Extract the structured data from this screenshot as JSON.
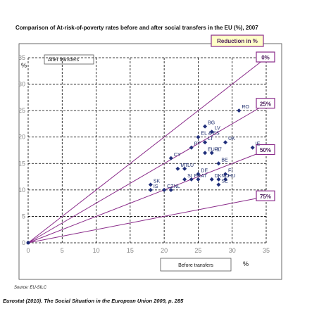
{
  "chart_data": {
    "type": "scatter",
    "title": "Comparison of At-risk-of-poverty rates before and after social transfers in the EU (%), 2007",
    "x_label": "Before transfers",
    "y_label": "After transfers",
    "x_unit": "%",
    "y_unit": "%",
    "reference_title": "Reduction in %",
    "reference_lines": [
      {
        "label": "0%",
        "reduction": 0
      },
      {
        "label": "25%",
        "reduction": 25
      },
      {
        "label": "50%",
        "reduction": 50
      },
      {
        "label": "75%",
        "reduction": 75
      }
    ],
    "xlim": [
      0,
      35
    ],
    "ylim": [
      0,
      35
    ],
    "xticks": [
      0,
      5,
      10,
      15,
      20,
      25,
      30,
      35
    ],
    "yticks": [
      0,
      5,
      10,
      15,
      20,
      25,
      30,
      35
    ],
    "grid": true,
    "series": [
      {
        "color": "#1f2e7a",
        "x": [
          26,
          31,
          27,
          25,
          26,
          29,
          33,
          24,
          27,
          26,
          28,
          21,
          22,
          23,
          25,
          23,
          24,
          25,
          28,
          29,
          29,
          27,
          28,
          18,
          20,
          18,
          21
        ],
        "values": [
          22,
          25,
          21,
          20,
          19,
          19,
          18,
          18,
          17,
          17,
          15,
          16,
          14,
          14,
          13,
          12,
          12,
          12,
          12,
          13,
          12,
          12,
          11,
          11,
          10,
          10,
          10
        ],
        "labels": [
          "BG",
          "RO",
          "LV",
          "EL & ES",
          "LT",
          "UK",
          "IE",
          "PT",
          "PL",
          "EU-27",
          "BE",
          "CY",
          "MT",
          "LU",
          "DE",
          "SI",
          "FR",
          "AT",
          "NO",
          "FI",
          "HU",
          "DK",
          "SE",
          "SK",
          "CZ",
          "IS",
          "NL"
        ]
      }
    ],
    "source": "Source: EU-SILC",
    "footer": "Eurostat (2010). The Social Situation in the European Union 2009, p. 285"
  }
}
